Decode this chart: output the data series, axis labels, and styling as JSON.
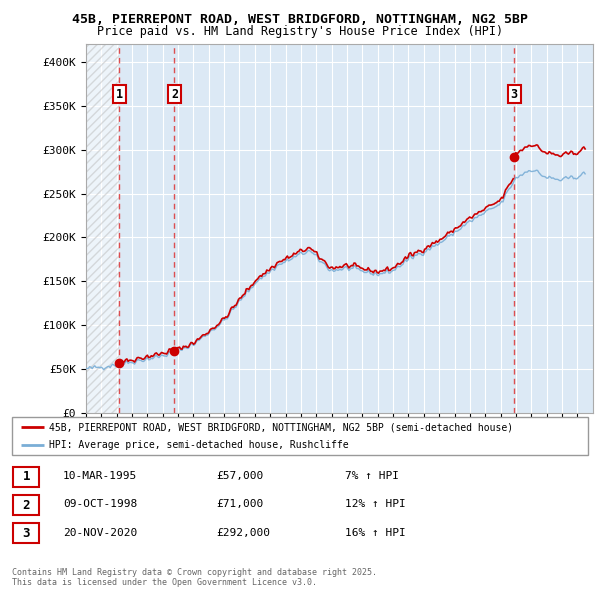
{
  "title_line1": "45B, PIERREPONT ROAD, WEST BRIDGFORD, NOTTINGHAM, NG2 5BP",
  "title_line2": "Price paid vs. HM Land Registry's House Price Index (HPI)",
  "bg_color": "#dce9f5",
  "sales": [
    {
      "num": 1,
      "date": "10-MAR-1995",
      "year": 1995.19,
      "price": 57000,
      "pct": "7%"
    },
    {
      "num": 2,
      "date": "09-OCT-1998",
      "year": 1998.77,
      "price": 71000,
      "pct": "12%"
    },
    {
      "num": 3,
      "date": "20-NOV-2020",
      "year": 2020.88,
      "price": 292000,
      "pct": "16%"
    }
  ],
  "legend_line1": "45B, PIERREPONT ROAD, WEST BRIDGFORD, NOTTINGHAM, NG2 5BP (semi-detached house)",
  "legend_line2": "HPI: Average price, semi-detached house, Rushcliffe",
  "footer": "Contains HM Land Registry data © Crown copyright and database right 2025.\nThis data is licensed under the Open Government Licence v3.0.",
  "ytick_labels": [
    "£0",
    "£50K",
    "£100K",
    "£150K",
    "£200K",
    "£250K",
    "£300K",
    "£350K",
    "£400K"
  ],
  "ytick_values": [
    0,
    50000,
    100000,
    150000,
    200000,
    250000,
    300000,
    350000,
    400000
  ],
  "ymax": 420000,
  "xmin": 1993,
  "xmax": 2026,
  "grid_color": "#ffffff",
  "sale_line_color": "#cc0000",
  "hpi_line_color": "#7aaed6",
  "table_entries": [
    [
      "1",
      "10-MAR-1995",
      "£57,000",
      "7% ↑ HPI"
    ],
    [
      "2",
      "09-OCT-1998",
      "£71,000",
      "12% ↑ HPI"
    ],
    [
      "3",
      "20-NOV-2020",
      "£292,000",
      "16% ↑ HPI"
    ]
  ]
}
